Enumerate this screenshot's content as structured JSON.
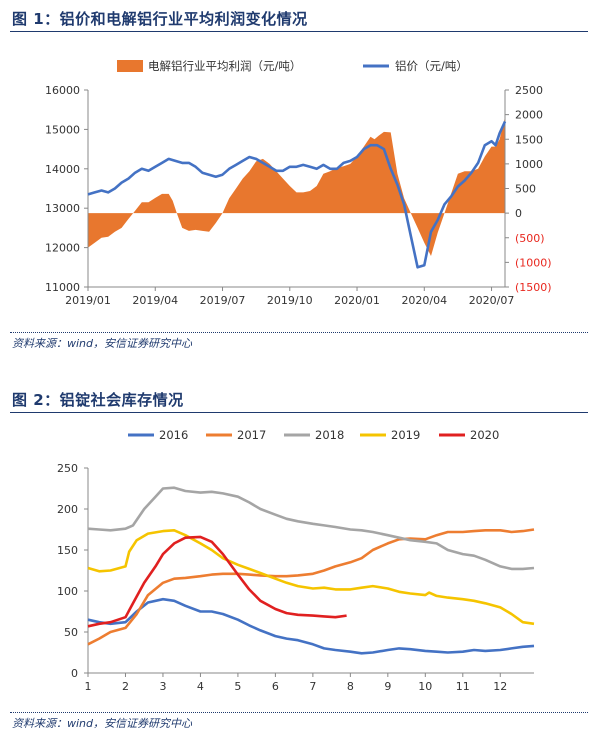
{
  "figures": [
    {
      "title": "图 1：铝价和电解铝行业平均利润变化情况",
      "source": "资料来源：wind，安信证券研究中心"
    },
    {
      "title": "图 2：铝锭社会库存情况",
      "source": "资料来源：wind，安信证券研究中心"
    }
  ],
  "chart_data": [
    {
      "type": "area+line",
      "legend_position": "top",
      "grid": false,
      "x_tick_labels": [
        "2019/01",
        "2019/04",
        "2019/07",
        "2019/10",
        "2020/01",
        "2020/04",
        "2020/07"
      ],
      "y_left": {
        "ticks": [
          "16000",
          "15000",
          "14000",
          "13000",
          "12000",
          "11000"
        ],
        "range": [
          11000,
          16000
        ]
      },
      "y_right": {
        "ticks": [
          "2500",
          "2000",
          "1500",
          "1000",
          "500",
          "0",
          "(500)",
          "(1000)",
          "(1500)"
        ],
        "range": [
          -1500,
          2500
        ],
        "negative_color": "#e8281f"
      },
      "series": [
        {
          "name": "电解铝行业平均利润（元/吨）",
          "axis": "right",
          "color": "#e8772e",
          "x": [
            0,
            0.5,
            1,
            1.5,
            2,
            2.5,
            3,
            3.5,
            4,
            4.5,
            5,
            5.5,
            6,
            6.3,
            6.6,
            7,
            7.5,
            8,
            8.5,
            9,
            9.5,
            10,
            10.5,
            11,
            11.5,
            12,
            12.5,
            13,
            13.5,
            14,
            14.5,
            15,
            15.5,
            16,
            16.5,
            17,
            17.5,
            18,
            18.5,
            19,
            19.5,
            20,
            20.5,
            21,
            21.3,
            21.6,
            22,
            22.5,
            23,
            23.5,
            24,
            24.5,
            25,
            25.5,
            26,
            26.5,
            27,
            27.5,
            28,
            28.5,
            29,
            29.5,
            30,
            30.3,
            30.6,
            31
          ],
          "values": [
            -700,
            -600,
            -500,
            -480,
            -380,
            -300,
            -120,
            50,
            220,
            220,
            310,
            390,
            390,
            250,
            0,
            -300,
            -360,
            -340,
            -360,
            -380,
            -200,
            0,
            300,
            500,
            700,
            850,
            1050,
            1100,
            1000,
            850,
            700,
            550,
            420,
            420,
            450,
            550,
            800,
            850,
            920,
            950,
            1000,
            1150,
            1350,
            1550,
            1500,
            1570,
            1650,
            1640,
            800,
            300,
            0,
            -300,
            -600,
            -870,
            -400,
            0,
            400,
            800,
            850,
            850,
            900,
            1150,
            1350,
            1350,
            1500,
            1950
          ]
        },
        {
          "name": "铝价（元/吨）",
          "axis": "left",
          "color": "#4472c4",
          "x": [
            0,
            0.5,
            1,
            1.5,
            2,
            2.5,
            3,
            3.5,
            4,
            4.5,
            5,
            5.5,
            6,
            6.5,
            7,
            7.5,
            8,
            8.5,
            9,
            9.5,
            10,
            10.5,
            11,
            11.5,
            12,
            12.5,
            13,
            13.5,
            14,
            14.5,
            15,
            15.5,
            16,
            16.5,
            17,
            17.5,
            18,
            18.5,
            19,
            19.5,
            20,
            20.5,
            21,
            21.5,
            22,
            22.5,
            23,
            23.5,
            24,
            24.5,
            25,
            25.5,
            26,
            26.5,
            27,
            27.5,
            28,
            28.5,
            29,
            29.5,
            30,
            30.3,
            30.6,
            31
          ],
          "values": [
            13350,
            13400,
            13450,
            13400,
            13500,
            13650,
            13750,
            13900,
            14000,
            13950,
            14050,
            14150,
            14250,
            14200,
            14150,
            14150,
            14050,
            13900,
            13850,
            13800,
            13850,
            14000,
            14100,
            14200,
            14300,
            14250,
            14150,
            14050,
            13950,
            13950,
            14050,
            14050,
            14100,
            14050,
            14000,
            14100,
            14000,
            14000,
            14150,
            14200,
            14300,
            14500,
            14600,
            14600,
            14500,
            14000,
            13600,
            13100,
            12300,
            11500,
            11550,
            12400,
            12700,
            13100,
            13300,
            13550,
            13700,
            13900,
            14150,
            14600,
            14700,
            14600,
            14900,
            15200
          ]
        }
      ]
    },
    {
      "type": "line",
      "legend_position": "top",
      "grid": false,
      "x_tick_labels": [
        "1",
        "2",
        "3",
        "4",
        "5",
        "6",
        "7",
        "8",
        "9",
        "10",
        "11",
        "12"
      ],
      "y_tick_labels": [
        "250",
        "200",
        "150",
        "100",
        "50",
        "0"
      ],
      "xlim": [
        1,
        12.9
      ],
      "ylim": [
        0,
        250
      ],
      "series": [
        {
          "name": "2016",
          "color": "#4472c4",
          "x": [
            1,
            1.3,
            1.6,
            2,
            2.3,
            2.6,
            3,
            3.3,
            3.6,
            4,
            4.3,
            4.6,
            5,
            5.3,
            5.6,
            6,
            6.3,
            6.6,
            7,
            7.3,
            7.6,
            8,
            8.3,
            8.6,
            9,
            9.3,
            9.6,
            10,
            10.3,
            10.6,
            11,
            11.3,
            11.6,
            12,
            12.3,
            12.6,
            12.9
          ],
          "values": [
            65,
            62,
            60,
            62,
            75,
            86,
            90,
            88,
            82,
            75,
            75,
            72,
            65,
            58,
            52,
            45,
            42,
            40,
            35,
            30,
            28,
            26,
            24,
            25,
            28,
            30,
            29,
            27,
            26,
            25,
            26,
            28,
            27,
            28,
            30,
            32,
            33
          ]
        },
        {
          "name": "2017",
          "color": "#ed7d31",
          "x": [
            1,
            1.3,
            1.6,
            2,
            2.3,
            2.6,
            3,
            3.3,
            3.6,
            4,
            4.3,
            4.6,
            5,
            5.3,
            5.6,
            6,
            6.3,
            6.6,
            7,
            7.3,
            7.6,
            8,
            8.3,
            8.6,
            9,
            9.3,
            9.6,
            10,
            10.3,
            10.6,
            11,
            11.3,
            11.6,
            12,
            12.3,
            12.6,
            12.9
          ],
          "values": [
            35,
            42,
            50,
            55,
            72,
            95,
            110,
            115,
            116,
            118,
            120,
            121,
            121,
            120,
            119,
            118,
            118,
            119,
            121,
            125,
            130,
            135,
            140,
            150,
            158,
            163,
            164,
            163,
            168,
            172,
            172,
            173,
            174,
            174,
            172,
            173,
            175
          ]
        },
        {
          "name": "2018",
          "color": "#a5a5a5",
          "x": [
            1,
            1.3,
            1.6,
            2,
            2.2,
            2.5,
            2.8,
            3,
            3.3,
            3.6,
            4,
            4.3,
            4.6,
            5,
            5.3,
            5.6,
            6,
            6.3,
            6.6,
            7,
            7.3,
            7.6,
            8,
            8.3,
            8.6,
            9,
            9.3,
            9.6,
            10,
            10.3,
            10.6,
            11,
            11.3,
            11.6,
            12,
            12.3,
            12.6,
            12.9
          ],
          "values": [
            176,
            175,
            174,
            176,
            180,
            200,
            215,
            225,
            226,
            222,
            220,
            221,
            219,
            215,
            208,
            200,
            193,
            188,
            185,
            182,
            180,
            178,
            175,
            174,
            172,
            168,
            165,
            162,
            160,
            158,
            150,
            145,
            143,
            138,
            130,
            127,
            127,
            128
          ]
        },
        {
          "name": "2019",
          "color": "#f5c400",
          "x": [
            1,
            1.3,
            1.6,
            2,
            2.1,
            2.3,
            2.6,
            3,
            3.3,
            3.6,
            4,
            4.3,
            4.6,
            5,
            5.3,
            5.6,
            6,
            6.3,
            6.6,
            7,
            7.3,
            7.6,
            8,
            8.3,
            8.6,
            9,
            9.3,
            9.6,
            10,
            10.1,
            10.3,
            10.6,
            11,
            11.3,
            11.6,
            12,
            12.3,
            12.6,
            12.9
          ],
          "values": [
            128,
            124,
            125,
            130,
            148,
            162,
            170,
            173,
            174,
            168,
            158,
            150,
            140,
            132,
            127,
            122,
            115,
            110,
            106,
            103,
            104,
            102,
            102,
            104,
            106,
            103,
            99,
            97,
            95,
            98,
            94,
            92,
            90,
            88,
            85,
            80,
            72,
            62,
            60
          ]
        },
        {
          "name": "2020",
          "color": "#e02020",
          "x": [
            1,
            1.3,
            1.6,
            2,
            2.2,
            2.5,
            2.8,
            3,
            3.3,
            3.6,
            4,
            4.3,
            4.6,
            5,
            5.3,
            5.6,
            6,
            6.3,
            6.6,
            7,
            7.3,
            7.6,
            7.9
          ],
          "values": [
            57,
            60,
            62,
            68,
            85,
            110,
            130,
            145,
            158,
            165,
            166,
            160,
            145,
            120,
            102,
            88,
            78,
            73,
            71,
            70,
            69,
            68,
            70
          ]
        }
      ]
    }
  ]
}
